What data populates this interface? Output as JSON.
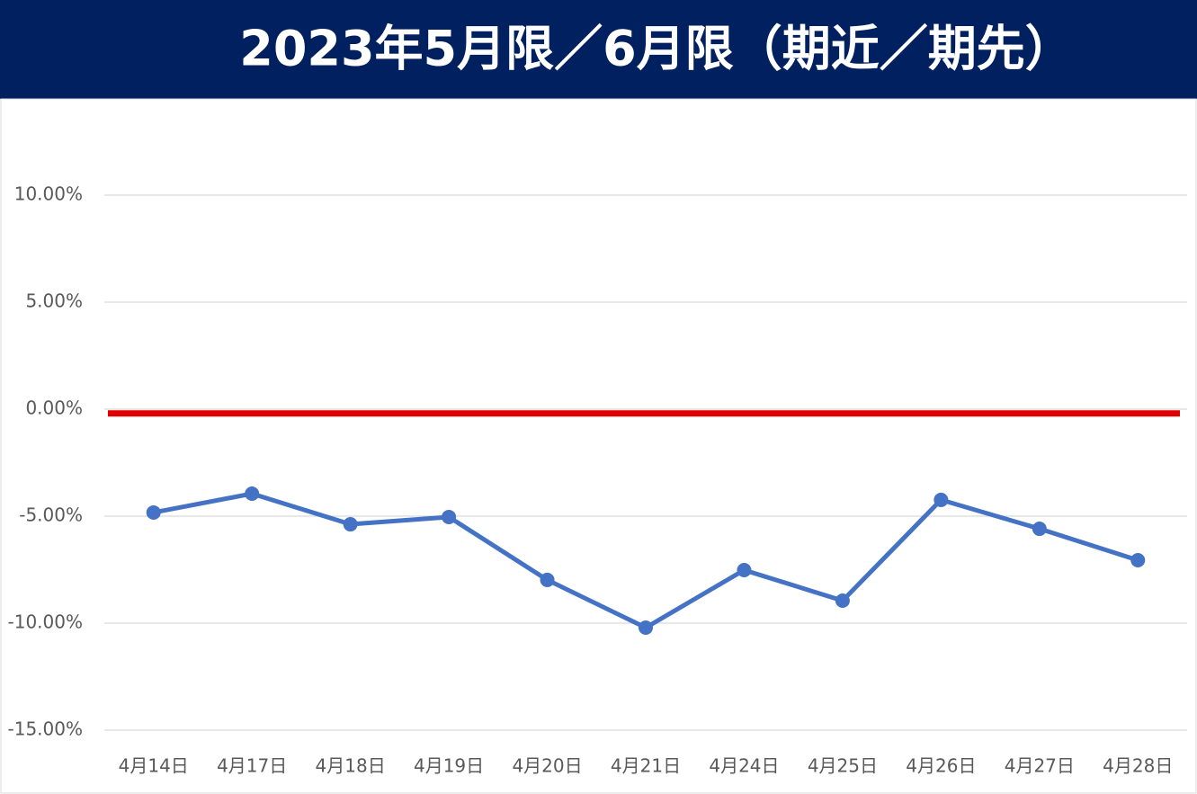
{
  "chart_data": {
    "type": "line",
    "title": "2023年5月限／6月限（期近／期先）",
    "categories": [
      "4月14日",
      "4月17日",
      "4月18日",
      "4月19日",
      "4月20日",
      "4月21日",
      "4月24日",
      "4月25日",
      "4月26日",
      "4月27日",
      "4月28日"
    ],
    "series": [
      {
        "color": "#4472c4",
        "values": [
          -4.83,
          -3.95,
          -5.38,
          -5.04,
          -7.98,
          -10.21,
          -7.52,
          -8.95,
          -4.24,
          -5.59,
          -7.06
        ]
      }
    ],
    "reference_line": {
      "value": -0.2,
      "color": "#e00000"
    },
    "ylim": [
      -15,
      10
    ],
    "yticks": [
      {
        "value": -15,
        "label": "-15.00%"
      },
      {
        "value": -10,
        "label": "-10.00%"
      },
      {
        "value": -5,
        "label": "-5.00%"
      },
      {
        "value": 0,
        "label": "0.00%"
      },
      {
        "value": 5,
        "label": "5.00%"
      },
      {
        "value": 10,
        "label": "10.00%"
      }
    ],
    "grid": true
  }
}
